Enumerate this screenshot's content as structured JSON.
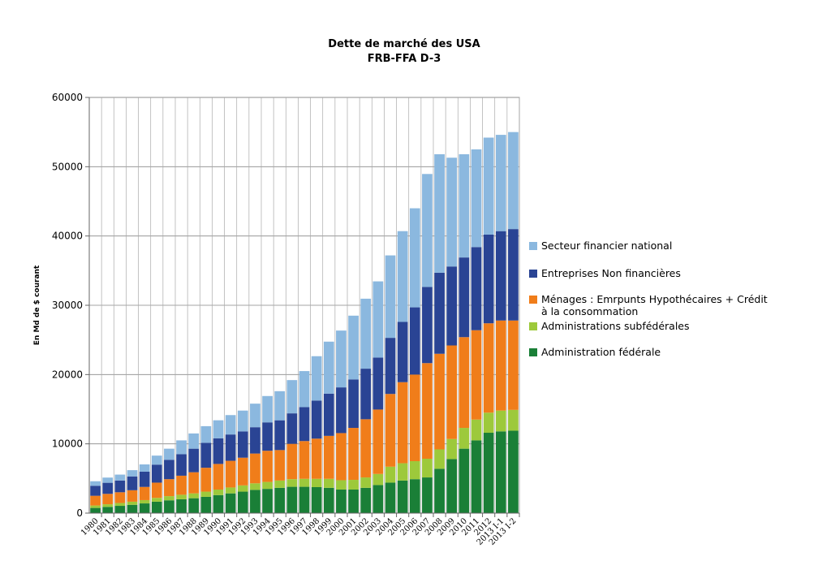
{
  "chart_data": {
    "type": "bar",
    "stacked": true,
    "title": "Dette de marché des USA",
    "subtitle": "FRB-FFA D-3",
    "xlabel": "",
    "ylabel": "En Md de $ courant",
    "ylim": [
      0,
      60000
    ],
    "yticks": [
      "0",
      "10000",
      "20000",
      "30000",
      "40000",
      "50000",
      "60000"
    ],
    "grid": true,
    "legend_position": "right",
    "categories": [
      "1980",
      "1981",
      "1982",
      "1983",
      "1984",
      "1985",
      "1986",
      "1987",
      "1988",
      "1989",
      "1990",
      "1991",
      "1992",
      "1993",
      "1994",
      "1995",
      "1996",
      "1997",
      "1998",
      "1999",
      "2000",
      "2001",
      "2002",
      "2003",
      "2004",
      "2005",
      "2006",
      "2007",
      "2008",
      "2009",
      "2010",
      "2011",
      "2012",
      "2013 I-1",
      "2013 I-2"
    ],
    "series": [
      {
        "name": "Administration fédérale",
        "color": "#1a7f37",
        "values": [
          750,
          900,
          1050,
          1200,
          1400,
          1650,
          1850,
          2000,
          2150,
          2350,
          2600,
          2850,
          3100,
          3350,
          3500,
          3650,
          3800,
          3800,
          3750,
          3650,
          3400,
          3400,
          3650,
          4050,
          4400,
          4700,
          4900,
          5150,
          6400,
          7800,
          9300,
          10500,
          11600,
          11800,
          11900
        ]
      },
      {
        "name": "Administrations subfédérales",
        "color": "#9dc93b",
        "values": [
          350,
          380,
          410,
          450,
          480,
          550,
          600,
          650,
          700,
          750,
          800,
          850,
          900,
          950,
          1000,
          1050,
          1100,
          1150,
          1200,
          1300,
          1350,
          1400,
          1500,
          1600,
          2300,
          2500,
          2600,
          2700,
          2800,
          2900,
          3000,
          3000,
          2900,
          3000,
          3000
        ]
      },
      {
        "name": "Ménages : Emrpunts Hypothécaires + Crédit à la consommation",
        "color": "#f07d1a",
        "values": [
          1400,
          1500,
          1550,
          1650,
          1900,
          2200,
          2450,
          2750,
          3050,
          3450,
          3700,
          3850,
          4000,
          4300,
          4500,
          4400,
          5100,
          5450,
          5800,
          6200,
          6800,
          7500,
          8400,
          9300,
          10500,
          11700,
          12500,
          13800,
          13800,
          13500,
          13100,
          12900,
          12900,
          13000,
          12900
        ]
      },
      {
        "name": "Entreprises Non financières",
        "color": "#2a4494",
        "values": [
          1450,
          1600,
          1700,
          2000,
          2200,
          2600,
          2800,
          3100,
          3400,
          3600,
          3700,
          3800,
          3800,
          3800,
          4100,
          4300,
          4400,
          4900,
          5500,
          6100,
          6600,
          7000,
          7300,
          7500,
          8100,
          8700,
          9700,
          11000,
          11700,
          11400,
          11500,
          12000,
          12800,
          12900,
          13200
        ]
      },
      {
        "name": "Secteur financier national",
        "color": "#8bb8df",
        "values": [
          650,
          750,
          850,
          900,
          1050,
          1300,
          1600,
          2000,
          2200,
          2400,
          2600,
          2800,
          3000,
          3400,
          3800,
          4200,
          4800,
          5200,
          6400,
          7500,
          8200,
          9200,
          10100,
          11000,
          11900,
          13100,
          14300,
          16300,
          17100,
          15700,
          14900,
          14100,
          14000,
          13900,
          14000
        ]
      }
    ]
  }
}
